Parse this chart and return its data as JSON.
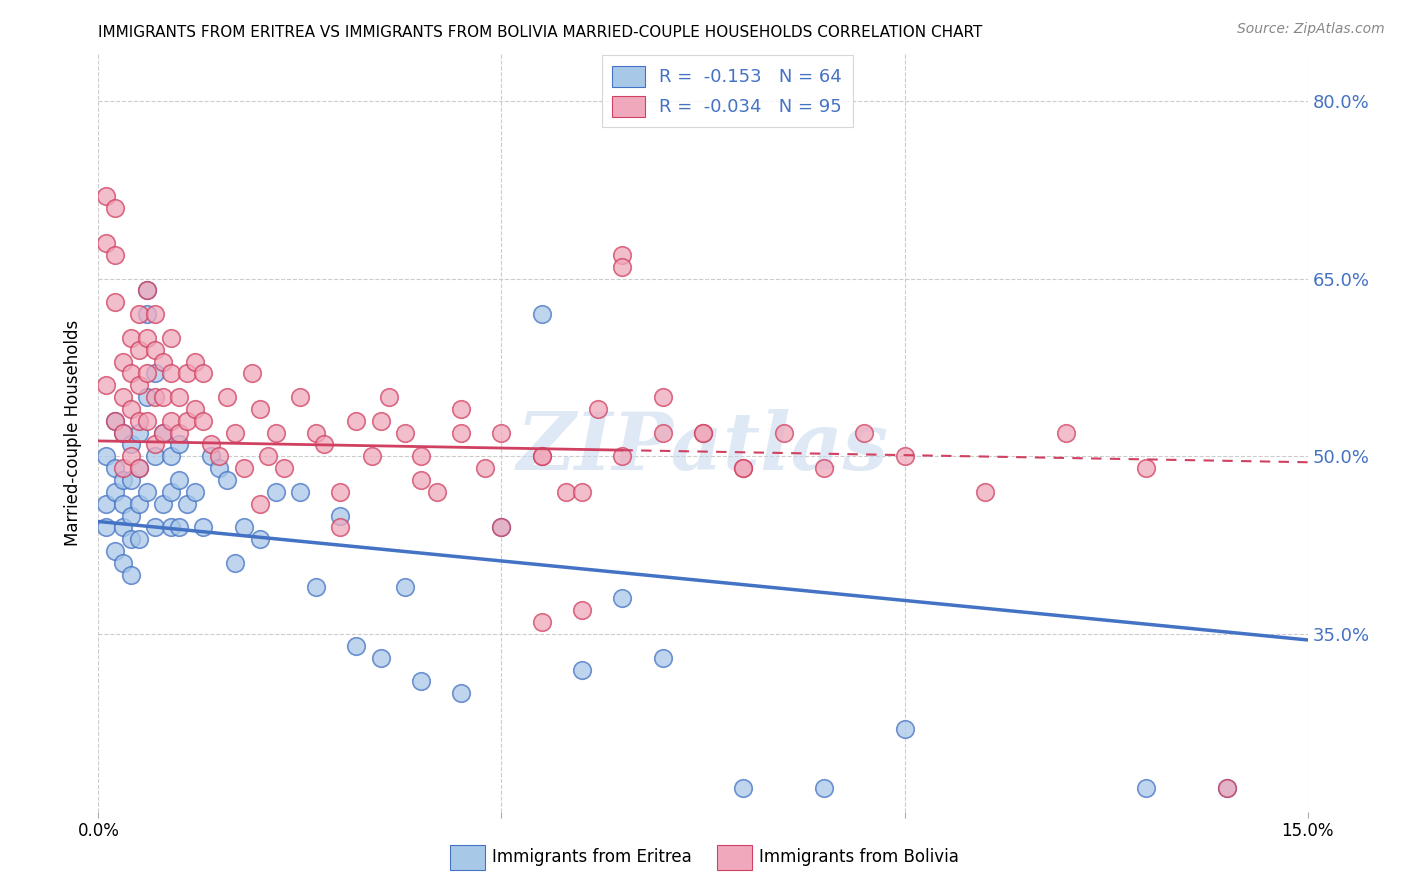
{
  "title": "IMMIGRANTS FROM ERITREA VS IMMIGRANTS FROM BOLIVIA MARRIED-COUPLE HOUSEHOLDS CORRELATION CHART",
  "source": "Source: ZipAtlas.com",
  "ylabel": "Married-couple Households",
  "xmin": 0.0,
  "xmax": 0.15,
  "ymin": 0.2,
  "ymax": 0.84,
  "eritrea_color": "#a8c8e8",
  "bolivia_color": "#f0a8bc",
  "eritrea_line_color": "#4472c4",
  "bolivia_line_color": "#d04060",
  "bolivia_line_solid_end": 0.065,
  "R_eritrea": -0.153,
  "N_eritrea": 64,
  "R_bolivia": -0.034,
  "N_bolivia": 95,
  "eritrea_line_y0": 0.445,
  "eritrea_line_y1": 0.345,
  "bolivia_line_y0": 0.513,
  "bolivia_line_y1": 0.495,
  "eritrea_x": [
    0.001,
    0.001,
    0.001,
    0.002,
    0.002,
    0.002,
    0.002,
    0.003,
    0.003,
    0.003,
    0.003,
    0.003,
    0.004,
    0.004,
    0.004,
    0.004,
    0.004,
    0.005,
    0.005,
    0.005,
    0.005,
    0.006,
    0.006,
    0.006,
    0.006,
    0.007,
    0.007,
    0.007,
    0.008,
    0.008,
    0.009,
    0.009,
    0.009,
    0.01,
    0.01,
    0.01,
    0.011,
    0.012,
    0.013,
    0.014,
    0.015,
    0.016,
    0.017,
    0.018,
    0.02,
    0.022,
    0.025,
    0.027,
    0.03,
    0.032,
    0.035,
    0.038,
    0.04,
    0.045,
    0.05,
    0.055,
    0.06,
    0.065,
    0.07,
    0.08,
    0.09,
    0.1,
    0.13,
    0.14
  ],
  "eritrea_y": [
    0.46,
    0.5,
    0.44,
    0.49,
    0.53,
    0.47,
    0.42,
    0.52,
    0.48,
    0.46,
    0.44,
    0.41,
    0.51,
    0.48,
    0.45,
    0.43,
    0.4,
    0.52,
    0.49,
    0.46,
    0.43,
    0.64,
    0.62,
    0.55,
    0.47,
    0.57,
    0.5,
    0.44,
    0.52,
    0.46,
    0.5,
    0.47,
    0.44,
    0.51,
    0.48,
    0.44,
    0.46,
    0.47,
    0.44,
    0.5,
    0.49,
    0.48,
    0.41,
    0.44,
    0.43,
    0.47,
    0.47,
    0.39,
    0.45,
    0.34,
    0.33,
    0.39,
    0.31,
    0.3,
    0.44,
    0.62,
    0.32,
    0.38,
    0.33,
    0.22,
    0.22,
    0.27,
    0.22,
    0.22
  ],
  "bolivia_x": [
    0.001,
    0.001,
    0.001,
    0.002,
    0.002,
    0.002,
    0.002,
    0.003,
    0.003,
    0.003,
    0.003,
    0.004,
    0.004,
    0.004,
    0.004,
    0.005,
    0.005,
    0.005,
    0.005,
    0.005,
    0.006,
    0.006,
    0.006,
    0.006,
    0.007,
    0.007,
    0.007,
    0.007,
    0.008,
    0.008,
    0.008,
    0.009,
    0.009,
    0.009,
    0.01,
    0.01,
    0.011,
    0.011,
    0.012,
    0.012,
    0.013,
    0.013,
    0.014,
    0.015,
    0.016,
    0.017,
    0.018,
    0.019,
    0.02,
    0.021,
    0.022,
    0.023,
    0.025,
    0.027,
    0.028,
    0.03,
    0.032,
    0.034,
    0.036,
    0.038,
    0.04,
    0.042,
    0.045,
    0.048,
    0.05,
    0.055,
    0.058,
    0.062,
    0.065,
    0.07,
    0.075,
    0.08,
    0.085,
    0.09,
    0.095,
    0.1,
    0.11,
    0.12,
    0.13,
    0.14,
    0.05,
    0.06,
    0.035,
    0.045,
    0.055,
    0.06,
    0.04,
    0.065,
    0.02,
    0.03,
    0.07,
    0.08,
    0.065,
    0.075,
    0.055
  ],
  "bolivia_y": [
    0.72,
    0.68,
    0.56,
    0.71,
    0.67,
    0.63,
    0.53,
    0.58,
    0.55,
    0.52,
    0.49,
    0.6,
    0.57,
    0.54,
    0.5,
    0.62,
    0.59,
    0.56,
    0.53,
    0.49,
    0.64,
    0.6,
    0.57,
    0.53,
    0.62,
    0.59,
    0.55,
    0.51,
    0.58,
    0.55,
    0.52,
    0.6,
    0.57,
    0.53,
    0.55,
    0.52,
    0.57,
    0.53,
    0.58,
    0.54,
    0.57,
    0.53,
    0.51,
    0.5,
    0.55,
    0.52,
    0.49,
    0.57,
    0.54,
    0.5,
    0.52,
    0.49,
    0.55,
    0.52,
    0.51,
    0.47,
    0.53,
    0.5,
    0.55,
    0.52,
    0.5,
    0.47,
    0.52,
    0.49,
    0.52,
    0.5,
    0.47,
    0.54,
    0.5,
    0.55,
    0.52,
    0.49,
    0.52,
    0.49,
    0.52,
    0.5,
    0.47,
    0.52,
    0.49,
    0.22,
    0.44,
    0.37,
    0.53,
    0.54,
    0.5,
    0.47,
    0.48,
    0.67,
    0.46,
    0.44,
    0.52,
    0.49,
    0.66,
    0.52,
    0.36
  ],
  "watermark_text": "ZIPatlas",
  "background_color": "#ffffff",
  "grid_color": "#cccccc",
  "yticks": [
    0.35,
    0.5,
    0.65,
    0.8
  ],
  "ytick_labels": [
    "35.0%",
    "50.0%",
    "65.0%",
    "80.0%"
  ],
  "xticks": [
    0.0,
    0.05,
    0.1,
    0.15
  ],
  "xtick_labels_show": [
    "0.0%",
    "",
    "",
    "15.0%"
  ]
}
